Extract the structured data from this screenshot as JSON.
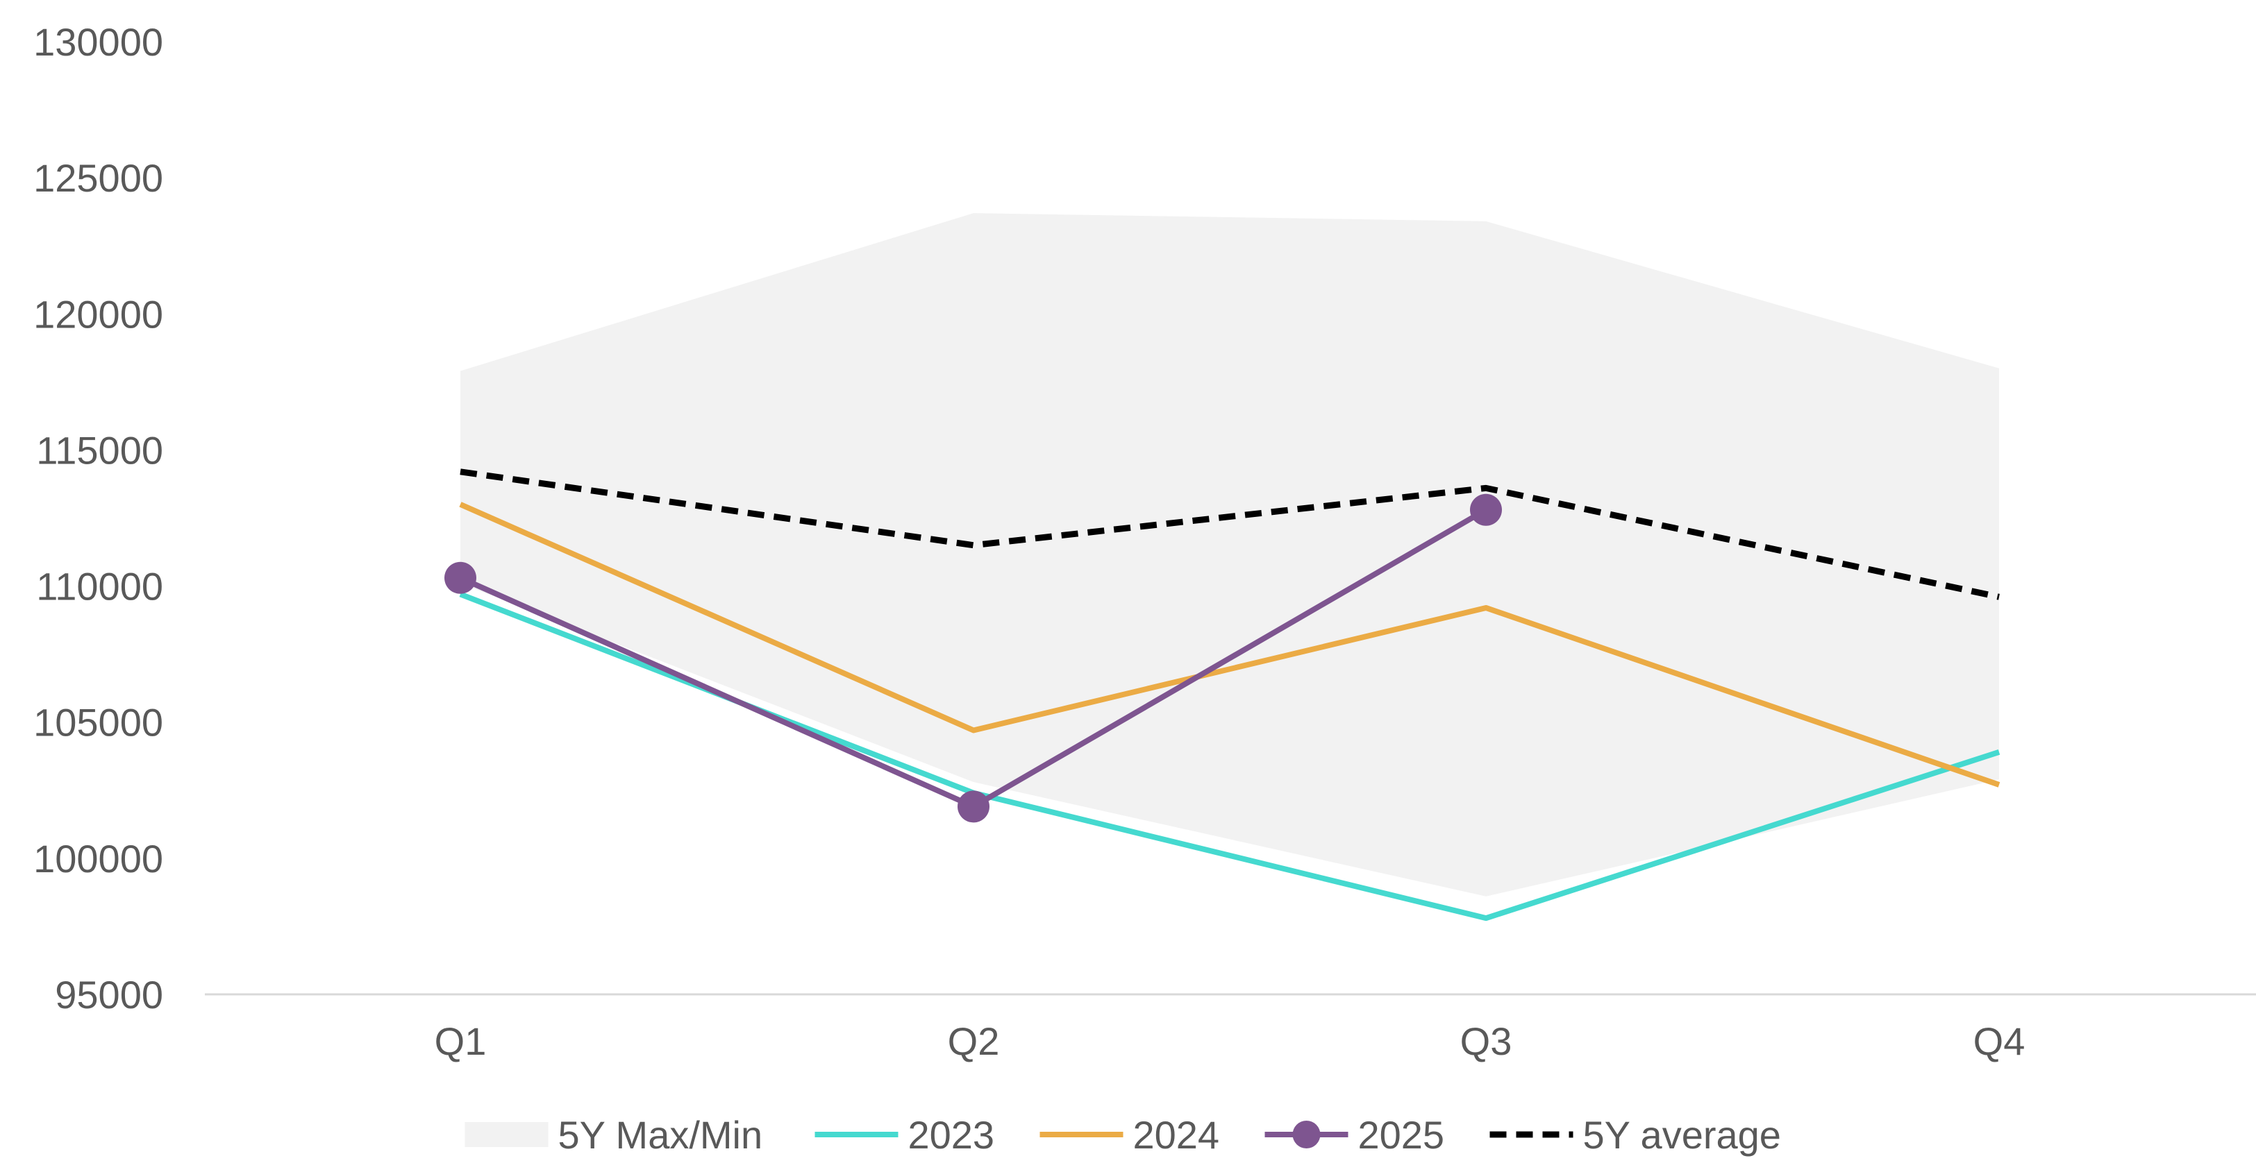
{
  "chart_data": {
    "type": "line",
    "title": "",
    "xlabel": "",
    "ylabel": "",
    "categories": [
      "Q1",
      "Q2",
      "Q3",
      "Q4"
    ],
    "ylim": [
      95000,
      130000
    ],
    "yticks": [
      130000,
      125000,
      120000,
      115000,
      110000,
      105000,
      100000,
      95000
    ],
    "grid": false,
    "legend_position": "bottom",
    "band": {
      "name": "5Y Max/Min",
      "max": [
        117900,
        123700,
        123400,
        118000
      ],
      "min": [
        110100,
        102800,
        98600,
        102900
      ],
      "color": "#f2f2f2"
    },
    "series": [
      {
        "name": "2023",
        "values": [
          109700,
          102400,
          97800,
          103900
        ],
        "color": "#45d9cf",
        "style": "solid",
        "markers": false
      },
      {
        "name": "2024",
        "values": [
          113000,
          104700,
          109200,
          102700
        ],
        "color": "#ebab45",
        "style": "solid",
        "markers": false
      },
      {
        "name": "2025",
        "values": [
          110300,
          101900,
          112800,
          null
        ],
        "color": "#7e5590",
        "style": "solid",
        "markers": true
      },
      {
        "name": "5Y average",
        "values": [
          114200,
          111500,
          113600,
          109600
        ],
        "color": "#000000",
        "style": "dashed",
        "markers": false
      }
    ]
  }
}
